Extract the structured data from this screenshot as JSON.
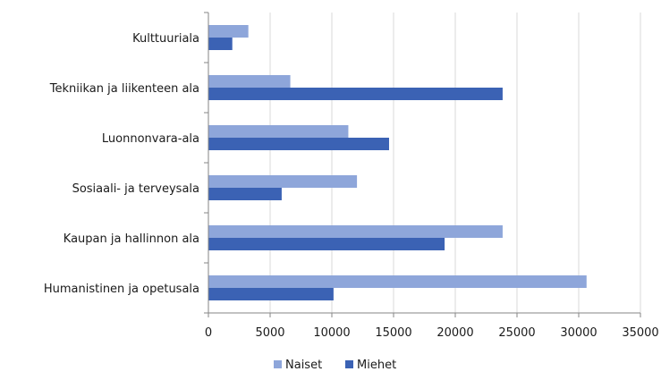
{
  "chart_data": {
    "type": "bar",
    "orientation": "horizontal",
    "categories": [
      "Kulttuuriala",
      "Tekniikan ja liikenteen ala",
      "Luonnonvara-ala",
      "Sosiaali- ja terveysala",
      "Kaupan ja hallinnon ala",
      "Humanistinen ja opetusala"
    ],
    "series": [
      {
        "name": "Naiset",
        "color": "#8EA6DA",
        "values": [
          3200,
          6600,
          11300,
          12000,
          23800,
          30600
        ]
      },
      {
        "name": "Miehet",
        "color": "#3B62B4",
        "values": [
          1900,
          23800,
          14600,
          5900,
          19100,
          10100
        ]
      }
    ],
    "xlim": [
      0,
      35000
    ],
    "xticks": [
      "0",
      "5000",
      "10000",
      "15000",
      "20000",
      "25000",
      "30000",
      "35000"
    ],
    "xtick_values": [
      0,
      5000,
      10000,
      15000,
      20000,
      25000,
      30000,
      35000
    ],
    "title": "",
    "xlabel": "",
    "ylabel": "",
    "grid": "vertical",
    "legend_position": "bottom"
  }
}
